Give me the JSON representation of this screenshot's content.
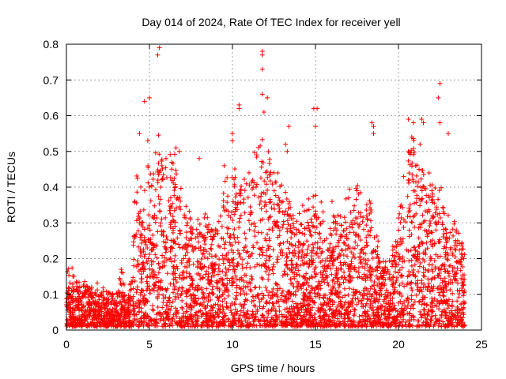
{
  "chart_data": {
    "type": "scatter",
    "title": "Day 014 of 2024, Rate Of TEC Index for receiver yell",
    "xlabel": "GPS time / hours",
    "ylabel": "ROTI / TECUs",
    "xlim": [
      0,
      25
    ],
    "ylim": [
      0,
      0.8
    ],
    "xticks": [
      0,
      5,
      10,
      15,
      20,
      25
    ],
    "yticks": [
      0,
      0.1,
      0.2,
      0.3,
      0.4,
      0.5,
      0.6,
      0.7,
      0.8
    ],
    "xtick_labels": [
      "0",
      "5",
      "10",
      "15",
      "20",
      "25"
    ],
    "ytick_labels": [
      "0",
      "0.1",
      "0.2",
      "0.3",
      "0.4",
      "0.5",
      "0.6",
      "0.7",
      "0.8"
    ],
    "grid": true,
    "marker": "+",
    "color": "#ff0000",
    "envelope": {
      "x": [
        0,
        0.5,
        1,
        1.5,
        2,
        2.5,
        3,
        3.3,
        3.6,
        3.9,
        4.1,
        4.3,
        4.6,
        5,
        5.5,
        6,
        6.5,
        7,
        7.5,
        8,
        8.5,
        9,
        9.5,
        10,
        10.5,
        11,
        11.5,
        12,
        12.5,
        13,
        13.5,
        14,
        14.5,
        15,
        15.5,
        16,
        16.5,
        17,
        17.5,
        18,
        18.5,
        19,
        19.5,
        20,
        20.5,
        21,
        21.5,
        22,
        22.5,
        23,
        23.5,
        24
      ],
      "upper": [
        0.17,
        0.14,
        0.12,
        0.12,
        0.11,
        0.1,
        0.09,
        0.17,
        0.09,
        0.12,
        0.35,
        0.42,
        0.35,
        0.45,
        0.5,
        0.45,
        0.5,
        0.35,
        0.3,
        0.28,
        0.3,
        0.28,
        0.38,
        0.45,
        0.38,
        0.42,
        0.5,
        0.5,
        0.42,
        0.38,
        0.34,
        0.33,
        0.34,
        0.36,
        0.31,
        0.3,
        0.32,
        0.36,
        0.38,
        0.4,
        0.3,
        0.2,
        0.18,
        0.3,
        0.5,
        0.5,
        0.45,
        0.4,
        0.38,
        0.32,
        0.3,
        0.22
      ]
    },
    "outliers": [
      [
        5.6,
        0.79
      ],
      [
        5.5,
        0.77
      ],
      [
        4.7,
        0.64
      ],
      [
        5.0,
        0.65
      ],
      [
        4.4,
        0.55
      ],
      [
        4.9,
        0.53
      ],
      [
        10.4,
        0.62
      ],
      [
        10.4,
        0.63
      ],
      [
        11.8,
        0.78
      ],
      [
        11.8,
        0.77
      ],
      [
        11.8,
        0.73
      ],
      [
        11.8,
        0.66
      ],
      [
        11.9,
        0.61
      ],
      [
        12.1,
        0.65
      ],
      [
        13.4,
        0.57
      ],
      [
        14.9,
        0.62
      ],
      [
        15.1,
        0.62
      ],
      [
        15.0,
        0.57
      ],
      [
        10.0,
        0.55
      ],
      [
        10.0,
        0.53
      ],
      [
        18.4,
        0.58
      ],
      [
        18.5,
        0.57
      ],
      [
        18.5,
        0.55
      ],
      [
        20.6,
        0.59
      ],
      [
        20.9,
        0.58
      ],
      [
        21.4,
        0.59
      ],
      [
        21.5,
        0.58
      ],
      [
        22.5,
        0.69
      ],
      [
        22.4,
        0.65
      ],
      [
        22.5,
        0.58
      ],
      [
        23.0,
        0.55
      ],
      [
        21.3,
        0.52
      ],
      [
        20.8,
        0.54
      ],
      [
        6.6,
        0.51
      ],
      [
        6.8,
        0.5
      ],
      [
        6.0,
        0.48
      ],
      [
        8.0,
        0.48
      ],
      [
        9.5,
        0.46
      ],
      [
        13.2,
        0.52
      ],
      [
        13.3,
        0.5
      ],
      [
        12.5,
        0.44
      ],
      [
        11.0,
        0.44
      ],
      [
        17.5,
        0.39
      ],
      [
        17.0,
        0.37
      ],
      [
        16.0,
        0.36
      ],
      [
        3.3,
        0.17
      ],
      [
        3.4,
        0.16
      ]
    ],
    "sample_count": 4200,
    "seed": 14
  }
}
